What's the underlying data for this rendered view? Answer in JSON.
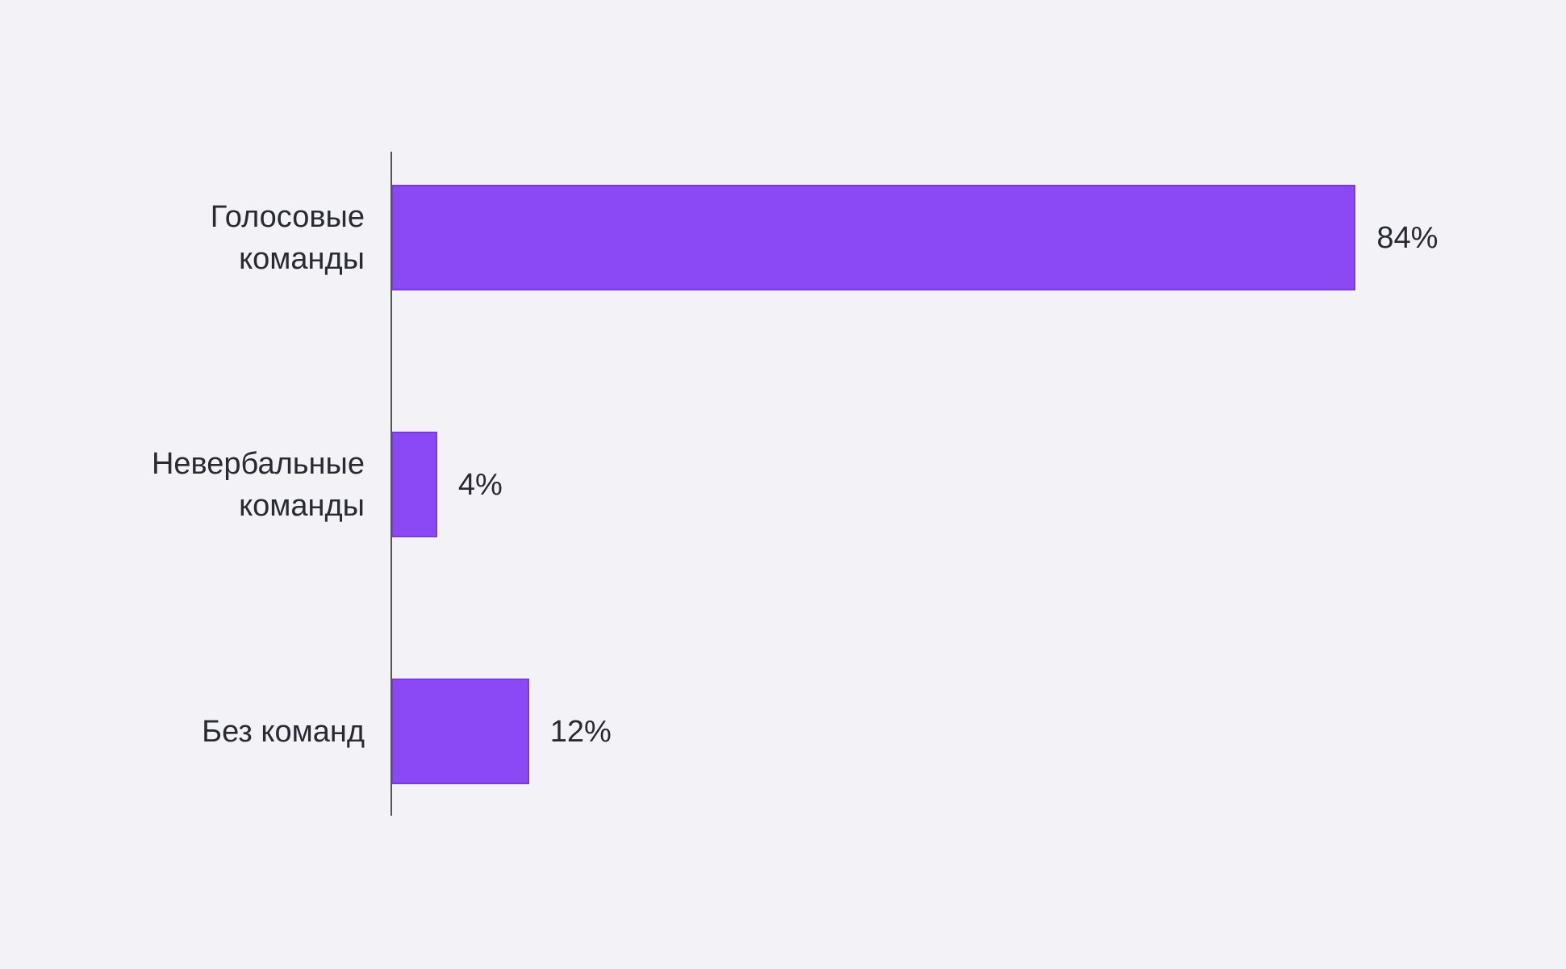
{
  "chart_data": {
    "type": "hbar",
    "categories": [
      "Голосовые команды",
      "Невербальные команды",
      "Без команд"
    ],
    "values": [
      84,
      4,
      12
    ],
    "value_labels": [
      "84%",
      "4%",
      "12%"
    ],
    "color": "#8b48f5",
    "xlim": [
      0,
      100
    ]
  }
}
